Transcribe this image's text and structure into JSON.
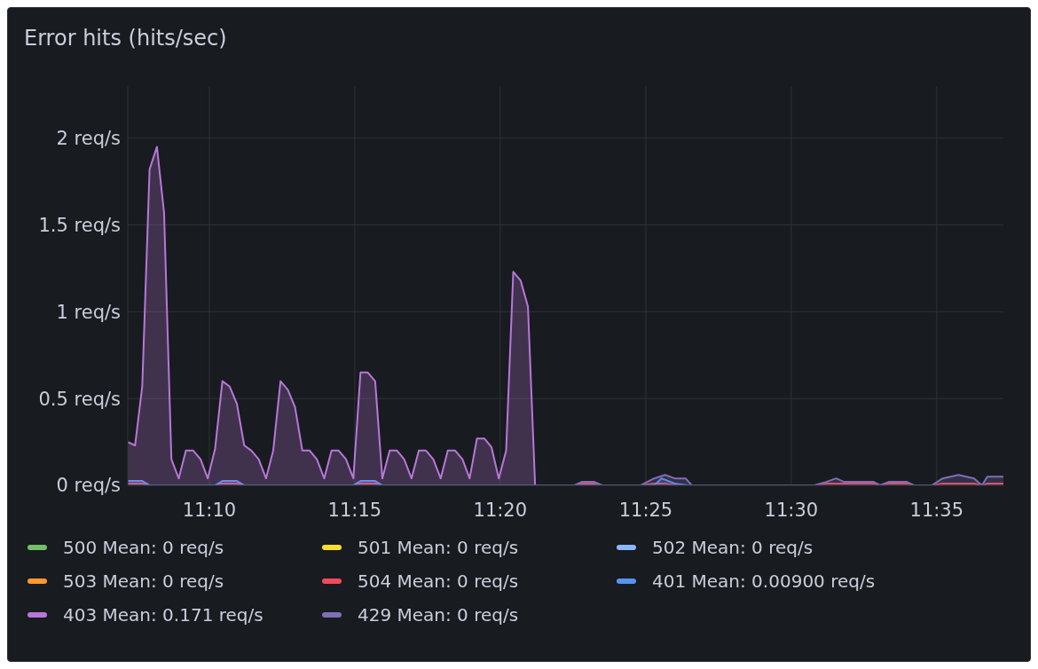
{
  "chart_data": {
    "type": "area",
    "title": "Error hits (hits/sec)",
    "xlim": [
      11.12,
      11.6215
    ],
    "xticks": [
      {
        "value": 11.1667,
        "label": "11:10"
      },
      {
        "value": 11.25,
        "label": "11:15"
      },
      {
        "value": 11.3333,
        "label": "11:20"
      },
      {
        "value": 11.4167,
        "label": "11:25"
      },
      {
        "value": 11.5,
        "label": "11:30"
      },
      {
        "value": 11.5833,
        "label": "11:35"
      }
    ],
    "ylim": [
      0,
      2.3
    ],
    "yticks": [
      {
        "value": 0,
        "label": "0 req/s"
      },
      {
        "value": 0.5,
        "label": "0.5 req/s"
      },
      {
        "value": 1,
        "label": "1 req/s"
      },
      {
        "value": 1.5,
        "label": "1.5 req/s"
      },
      {
        "value": 2,
        "label": "2 req/s"
      }
    ],
    "grid": true,
    "legend": "bottom",
    "series": [
      {
        "name": "500 Mean: 0 req/s",
        "color": "#73bf69"
      },
      {
        "name": "501 Mean: 0 req/s",
        "color": "#fade2a"
      },
      {
        "name": "502 Mean: 0 req/s",
        "color": "#8ab8ff"
      },
      {
        "name": "503 Mean: 0 req/s",
        "color": "#ff9830"
      },
      {
        "name": "504 Mean: 0 req/s",
        "color": "#f2495c",
        "x": [
          11.12,
          11.1283,
          11.1325,
          11.17,
          11.1742,
          11.1825,
          11.1867,
          11.2492,
          11.2533,
          11.2617,
          11.2658,
          11.3533,
          11.3758,
          11.38,
          11.3872,
          11.3917,
          11.4138,
          11.4215,
          11.4277,
          11.4333,
          11.5133,
          11.52,
          11.5472,
          11.5508,
          11.5558,
          11.5662,
          11.5703,
          11.5805,
          11.5867,
          11.6047,
          11.6092,
          11.6123,
          11.6215
        ],
        "values": [
          0.01,
          0.01,
          0,
          0,
          0.01,
          0.01,
          0,
          0,
          0.01,
          0.01,
          0,
          0,
          0,
          0.01,
          0.01,
          0,
          0,
          0.01,
          0.01,
          0,
          0,
          0.01,
          0.01,
          0,
          0.01,
          0.01,
          0,
          0,
          0.01,
          0.01,
          0,
          0.01,
          0.01
        ]
      },
      {
        "name": "401 Mean: 0.00900 req/s",
        "color": "#5794f2",
        "x": [
          11.12,
          11.1283,
          11.1325,
          11.17,
          11.1742,
          11.1825,
          11.1867,
          11.2492,
          11.2533,
          11.2617,
          11.2658,
          11.3533,
          11.4215,
          11.4257,
          11.4333,
          11.441
        ],
        "values": [
          0.025,
          0.025,
          0,
          0,
          0.025,
          0.025,
          0,
          0,
          0.025,
          0.025,
          0,
          0,
          0,
          0.04,
          0.01,
          0
        ]
      },
      {
        "name": "403 Mean: 0.171 req/s",
        "color": "#b877d9",
        "x": [
          11.12,
          11.1242,
          11.1283,
          11.1325,
          11.1367,
          11.1408,
          11.145,
          11.1492,
          11.1533,
          11.1575,
          11.1617,
          11.1658,
          11.17,
          11.1742,
          11.1783,
          11.1825,
          11.1867,
          11.1908,
          11.195,
          11.1992,
          11.2033,
          11.2075,
          11.2117,
          11.2158,
          11.22,
          11.2242,
          11.2283,
          11.2325,
          11.2367,
          11.2408,
          11.245,
          11.2492,
          11.2533,
          11.2575,
          11.2617,
          11.2658,
          11.27,
          11.2742,
          11.2783,
          11.2825,
          11.2867,
          11.2908,
          11.295,
          11.2992,
          11.3033,
          11.3075,
          11.3117,
          11.3158,
          11.32,
          11.3242,
          11.3283,
          11.3325,
          11.3367,
          11.3408,
          11.345,
          11.3492,
          11.3533
        ],
        "values": [
          0.25,
          0.23,
          0.57,
          1.82,
          1.95,
          1.57,
          0.15,
          0.04,
          0.2,
          0.2,
          0.15,
          0.04,
          0.21,
          0.6,
          0.57,
          0.47,
          0.23,
          0.2,
          0.15,
          0.04,
          0.2,
          0.6,
          0.55,
          0.45,
          0.2,
          0.2,
          0.15,
          0.04,
          0.2,
          0.2,
          0.15,
          0.04,
          0.65,
          0.65,
          0.6,
          0.04,
          0.2,
          0.2,
          0.15,
          0.04,
          0.2,
          0.2,
          0.15,
          0.04,
          0.2,
          0.2,
          0.15,
          0.04,
          0.27,
          0.27,
          0.22,
          0.04,
          0.2,
          1.23,
          1.18,
          1.03,
          0
        ]
      },
      {
        "name": "429 Mean: 0 req/s",
        "color": "#806eb7",
        "x": [
          11.3543,
          11.3758,
          11.38,
          11.3872,
          11.3917,
          11.4138,
          11.4215,
          11.4277,
          11.4333,
          11.4395,
          11.443,
          11.5133,
          11.52,
          11.5257,
          11.5303,
          11.5472,
          11.5508,
          11.5558,
          11.5662,
          11.5703,
          11.5805,
          11.5867,
          11.5958,
          11.6047,
          11.6092,
          11.6123,
          11.6215
        ],
        "values": [
          0,
          0,
          0.02,
          0.02,
          0,
          0,
          0.04,
          0.06,
          0.04,
          0.04,
          0,
          0,
          0.02,
          0.04,
          0.02,
          0.02,
          0,
          0.02,
          0.02,
          0,
          0,
          0.04,
          0.06,
          0.04,
          0,
          0.05,
          0.05
        ]
      }
    ]
  }
}
